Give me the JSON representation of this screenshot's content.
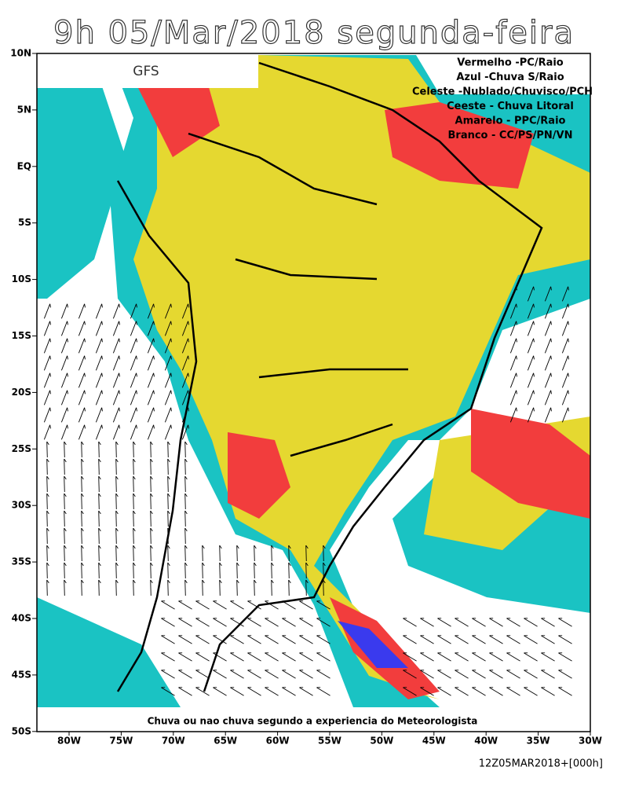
{
  "title": "9h 05/Mar/2018 segunda-feira",
  "model": "GFS",
  "legend": [
    "Vermelho -PC/Raio",
    "Azul -Chuva S/Raio",
    "Celeste -Nublado/Chuvisco/PCH",
    "Ceeste - Chuva Litoral",
    "Amarelo - PPC/Raio",
    "Branco - CC/PS/PN/VN"
  ],
  "lat_labels": [
    "10N",
    "5N",
    "EQ",
    "5S",
    "10S",
    "15S",
    "20S",
    "25S",
    "30S",
    "35S",
    "40S",
    "45S",
    "50S"
  ],
  "lon_labels": [
    "80W",
    "75W",
    "70W",
    "65W",
    "60W",
    "55W",
    "50W",
    "45W",
    "40W",
    "35W",
    "30W"
  ],
  "note": "Chuva ou nao chuva segundo a experiencia do Meteorologista",
  "timestamp": "12Z05MAR2018+[000h]"
}
